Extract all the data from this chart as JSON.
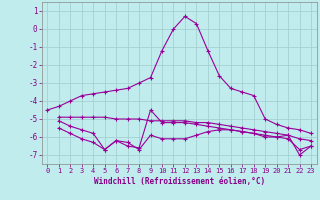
{
  "background_color": "#c0ecee",
  "grid_color": "#a0cccc",
  "line_color": "#990099",
  "xlabel": "Windchill (Refroidissement éolien,°C)",
  "xlim": [
    -0.5,
    23.5
  ],
  "ylim": [
    -7.5,
    1.5
  ],
  "yticks": [
    1,
    0,
    -1,
    -2,
    -3,
    -4,
    -5,
    -6,
    -7
  ],
  "xticks": [
    0,
    1,
    2,
    3,
    4,
    5,
    6,
    7,
    8,
    9,
    10,
    11,
    12,
    13,
    14,
    15,
    16,
    17,
    18,
    19,
    20,
    21,
    22,
    23
  ],
  "line1_x": [
    0,
    1,
    2,
    3,
    4,
    5,
    6,
    7,
    8,
    9,
    10,
    11,
    12,
    13,
    14,
    15,
    16,
    17,
    18,
    19,
    20,
    21,
    22,
    23
  ],
  "line1_y": [
    -4.5,
    -4.3,
    -4.0,
    -3.7,
    -3.6,
    -3.5,
    -3.4,
    -3.3,
    -3.0,
    -2.7,
    -1.2,
    0.0,
    0.7,
    0.3,
    -1.2,
    -2.6,
    -3.3,
    -3.5,
    -3.7,
    -5.0,
    -5.3,
    -5.5,
    -5.6,
    -5.8
  ],
  "line2_x": [
    1,
    2,
    3,
    4,
    5,
    6,
    7,
    8,
    9,
    10,
    11,
    12,
    13,
    14,
    15,
    16,
    17,
    18,
    19,
    20,
    21,
    22,
    23
  ],
  "line2_y": [
    -4.9,
    -4.9,
    -4.9,
    -4.9,
    -4.9,
    -5.0,
    -5.0,
    -5.0,
    -5.1,
    -5.1,
    -5.1,
    -5.1,
    -5.2,
    -5.2,
    -5.3,
    -5.4,
    -5.5,
    -5.6,
    -5.7,
    -5.8,
    -5.9,
    -6.1,
    -6.2
  ],
  "line3_x": [
    1,
    2,
    3,
    4,
    5,
    6,
    7,
    8,
    9,
    10,
    11,
    12,
    13,
    14,
    15,
    16,
    17,
    18,
    19,
    20,
    21,
    22,
    23
  ],
  "line3_y": [
    -5.1,
    -5.4,
    -5.6,
    -5.8,
    -6.7,
    -6.2,
    -6.5,
    -6.6,
    -4.5,
    -5.2,
    -5.2,
    -5.2,
    -5.3,
    -5.4,
    -5.5,
    -5.6,
    -5.7,
    -5.8,
    -5.9,
    -6.0,
    -5.9,
    -7.0,
    -6.5
  ],
  "line4_x": [
    1,
    2,
    3,
    4,
    5,
    6,
    7,
    8,
    9,
    10,
    11,
    12,
    13,
    14,
    15,
    16,
    17,
    18,
    19,
    20,
    21,
    22,
    23
  ],
  "line4_y": [
    -5.5,
    -5.8,
    -6.1,
    -6.3,
    -6.7,
    -6.2,
    -6.3,
    -6.7,
    -5.9,
    -6.1,
    -6.1,
    -6.1,
    -5.9,
    -5.7,
    -5.6,
    -5.6,
    -5.7,
    -5.8,
    -6.0,
    -6.0,
    -6.1,
    -6.7,
    -6.5
  ]
}
